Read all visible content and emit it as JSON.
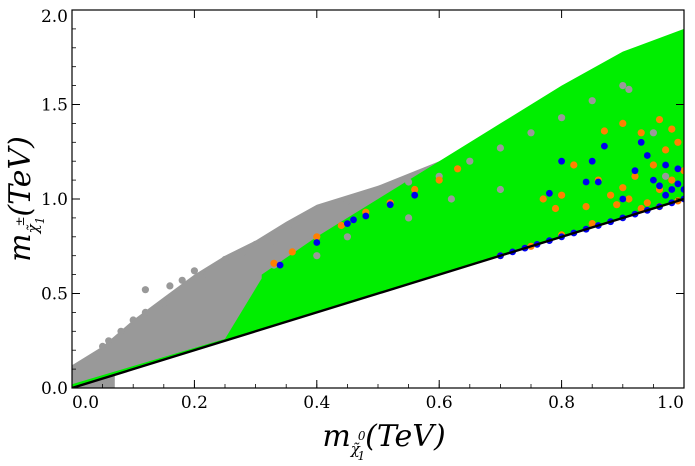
{
  "chart_data": {
    "type": "scatter",
    "title": "",
    "xlabel": {
      "prefix": "m",
      "subscript": "χ̃",
      "subscript_sub": "1",
      "subscript_sup": "0",
      "suffix": "(TeV)"
    },
    "ylabel": {
      "prefix": "m",
      "subscript": "χ̃",
      "subscript_sub": "1",
      "subscript_sup": "±",
      "suffix": "(TeV)"
    },
    "xlim": [
      0.0,
      1.0
    ],
    "ylim": [
      0.0,
      2.0
    ],
    "x_ticks": [
      "0.0",
      "0.2",
      "0.4",
      "0.6",
      "0.8",
      "1.0"
    ],
    "y_ticks": [
      "0.0",
      "0.5",
      "1.0",
      "1.5",
      "2.0"
    ],
    "grid": false,
    "legend": "none",
    "colors": {
      "gray": "#999999",
      "green": "#00ee00",
      "orange": "#ff8000",
      "blue": "#0000ee",
      "line": "#000000"
    },
    "regions": {
      "gray_envelope": [
        [
          0.0,
          0.0
        ],
        [
          0.0,
          0.12
        ],
        [
          0.05,
          0.22
        ],
        [
          0.1,
          0.36
        ],
        [
          0.15,
          0.48
        ],
        [
          0.2,
          0.6
        ],
        [
          0.25,
          0.7
        ],
        [
          0.3,
          0.78
        ],
        [
          0.35,
          0.88
        ],
        [
          0.4,
          0.97
        ],
        [
          0.5,
          1.07
        ],
        [
          0.6,
          1.2
        ],
        [
          0.7,
          1.35
        ],
        [
          0.8,
          1.5
        ],
        [
          0.9,
          1.6
        ],
        [
          0.91,
          1.62
        ],
        [
          0.92,
          1.55
        ],
        [
          0.95,
          1.3
        ],
        [
          1.0,
          1.0
        ],
        [
          0.9,
          0.9
        ],
        [
          0.8,
          0.8
        ],
        [
          0.7,
          0.7
        ],
        [
          0.5,
          0.5
        ],
        [
          0.3,
          0.3
        ],
        [
          0.1,
          0.1
        ],
        [
          0.07,
          0.07
        ],
        [
          0.07,
          0.0
        ]
      ],
      "green_envelope": [
        [
          0.31,
          0.6
        ],
        [
          0.4,
          0.8
        ],
        [
          0.5,
          1.0
        ],
        [
          0.6,
          1.2
        ],
        [
          0.7,
          1.4
        ],
        [
          0.8,
          1.6
        ],
        [
          0.9,
          1.78
        ],
        [
          1.0,
          1.9
        ],
        [
          1.0,
          1.0
        ],
        [
          0.8,
          0.8
        ],
        [
          0.6,
          0.6
        ],
        [
          0.4,
          0.4
        ],
        [
          0.2,
          0.2
        ],
        [
          0.0,
          0.0
        ],
        [
          0.0,
          0.02
        ],
        [
          0.25,
          0.26
        ],
        [
          0.31,
          0.58
        ]
      ]
    },
    "series": [
      {
        "color": "gray",
        "points": [
          [
            0.12,
            0.52
          ],
          [
            0.16,
            0.54
          ],
          [
            0.18,
            0.57
          ],
          [
            0.2,
            0.62
          ],
          [
            0.22,
            0.6
          ],
          [
            0.25,
            0.68
          ],
          [
            0.28,
            0.72
          ],
          [
            0.3,
            0.76
          ],
          [
            0.33,
            0.78
          ],
          [
            0.36,
            0.87
          ],
          [
            0.4,
            0.94
          ],
          [
            0.45,
            0.99
          ],
          [
            0.5,
            1.04
          ],
          [
            0.55,
            1.09
          ],
          [
            0.6,
            1.12
          ],
          [
            0.65,
            1.2
          ],
          [
            0.7,
            1.27
          ],
          [
            0.75,
            1.35
          ],
          [
            0.8,
            1.43
          ],
          [
            0.85,
            1.52
          ],
          [
            0.9,
            1.6
          ],
          [
            0.91,
            1.58
          ],
          [
            0.95,
            1.35
          ],
          [
            0.97,
            1.12
          ],
          [
            0.33,
            0.65
          ],
          [
            0.4,
            0.7
          ],
          [
            0.45,
            0.8
          ],
          [
            0.55,
            0.9
          ],
          [
            0.62,
            1.0
          ],
          [
            0.7,
            1.05
          ],
          [
            0.05,
            0.22
          ],
          [
            0.08,
            0.3
          ],
          [
            0.1,
            0.36
          ],
          [
            0.12,
            0.4
          ],
          [
            0.15,
            0.45
          ],
          [
            0.04,
            0.17
          ],
          [
            0.06,
            0.25
          ]
        ]
      },
      {
        "color": "orange",
        "points": [
          [
            0.33,
            0.66
          ],
          [
            0.36,
            0.72
          ],
          [
            0.4,
            0.8
          ],
          [
            0.44,
            0.86
          ],
          [
            0.48,
            0.93
          ],
          [
            0.52,
            0.98
          ],
          [
            0.56,
            1.05
          ],
          [
            0.6,
            1.1
          ],
          [
            0.63,
            1.16
          ],
          [
            0.7,
            0.7
          ],
          [
            0.75,
            0.75
          ],
          [
            0.8,
            0.81
          ],
          [
            0.85,
            0.87
          ],
          [
            0.88,
            1.02
          ],
          [
            0.9,
            1.06
          ],
          [
            0.92,
            1.12
          ],
          [
            0.95,
            1.18
          ],
          [
            0.97,
            1.26
          ],
          [
            0.99,
            1.3
          ],
          [
            0.87,
            1.36
          ],
          [
            0.9,
            1.4
          ],
          [
            0.93,
            1.35
          ],
          [
            0.96,
            1.42
          ],
          [
            0.98,
            1.37
          ],
          [
            0.8,
            1.02
          ],
          [
            0.82,
            1.18
          ],
          [
            0.84,
            0.96
          ],
          [
            0.86,
            1.1
          ],
          [
            0.89,
            0.97
          ],
          [
            0.91,
            1.0
          ],
          [
            0.94,
            0.98
          ],
          [
            0.96,
            1.05
          ],
          [
            0.98,
            1.1
          ],
          [
            1.0,
            1.15
          ],
          [
            0.77,
            1.0
          ],
          [
            0.79,
            0.95
          ],
          [
            0.93,
            0.95
          ],
          [
            0.96,
            0.96
          ],
          [
            0.99,
            0.99
          ]
        ]
      },
      {
        "color": "blue",
        "points": [
          [
            0.34,
            0.65
          ],
          [
            0.4,
            0.77
          ],
          [
            0.45,
            0.87
          ],
          [
            0.46,
            0.89
          ],
          [
            0.48,
            0.91
          ],
          [
            0.52,
            0.97
          ],
          [
            0.56,
            1.02
          ],
          [
            0.78,
            1.03
          ],
          [
            0.8,
            1.2
          ],
          [
            0.85,
            1.2
          ],
          [
            0.87,
            1.28
          ],
          [
            0.84,
            1.09
          ],
          [
            0.86,
            1.09
          ],
          [
            0.9,
            1.0
          ],
          [
            0.92,
            1.15
          ],
          [
            0.93,
            1.3
          ],
          [
            0.94,
            1.23
          ],
          [
            0.95,
            1.1
          ],
          [
            0.96,
            1.07
          ],
          [
            0.97,
            1.02
          ],
          [
            0.98,
            1.05
          ],
          [
            0.99,
            1.08
          ],
          [
            1.0,
            1.05
          ],
          [
            0.99,
            1.16
          ],
          [
            0.97,
            1.18
          ],
          [
            0.7,
            0.7
          ],
          [
            0.72,
            0.72
          ],
          [
            0.74,
            0.74
          ],
          [
            0.76,
            0.76
          ],
          [
            0.78,
            0.78
          ],
          [
            0.8,
            0.8
          ],
          [
            0.82,
            0.82
          ],
          [
            0.84,
            0.84
          ],
          [
            0.86,
            0.86
          ],
          [
            0.88,
            0.88
          ],
          [
            0.9,
            0.9
          ],
          [
            0.92,
            0.92
          ],
          [
            0.94,
            0.94
          ],
          [
            0.96,
            0.96
          ],
          [
            0.98,
            0.98
          ],
          [
            1.0,
            1.0
          ]
        ]
      }
    ],
    "reference_line": {
      "x": [
        0.0,
        1.0
      ],
      "y": [
        0.0,
        1.0
      ]
    }
  }
}
